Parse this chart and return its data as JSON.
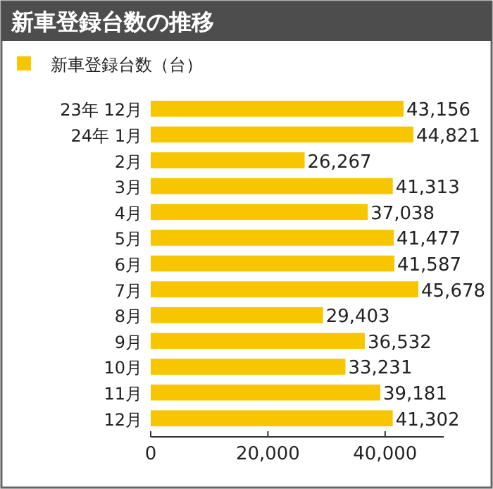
{
  "chart_data": {
    "type": "bar",
    "orientation": "horizontal",
    "title": "新車登録台数の推移",
    "categories": [
      "23年 12月",
      "24年 1月",
      "2月",
      "3月",
      "4月",
      "5月",
      "6月",
      "7月",
      "8月",
      "9月",
      "10月",
      "11月",
      "12月"
    ],
    "series": [
      {
        "name": "新車登録台数（台）",
        "color": "#f7c600",
        "values": [
          43156,
          44821,
          26267,
          41313,
          37038,
          41477,
          41587,
          45678,
          29403,
          36532,
          33231,
          39181,
          41302
        ]
      }
    ],
    "value_labels": [
      "43,156",
      "44,821",
      "26,267",
      "41,313",
      "37,038",
      "41,477",
      "41,587",
      "45,678",
      "29,403",
      "36,532",
      "33,231",
      "39,181",
      "41,302"
    ],
    "xlim": [
      0,
      50000
    ],
    "xticks": [
      0,
      {
        "value": 20000,
        "label": "20,000"
      },
      {
        "value": 40000,
        "label": "40,000"
      }
    ],
    "legend": "top left",
    "grid": false
  }
}
